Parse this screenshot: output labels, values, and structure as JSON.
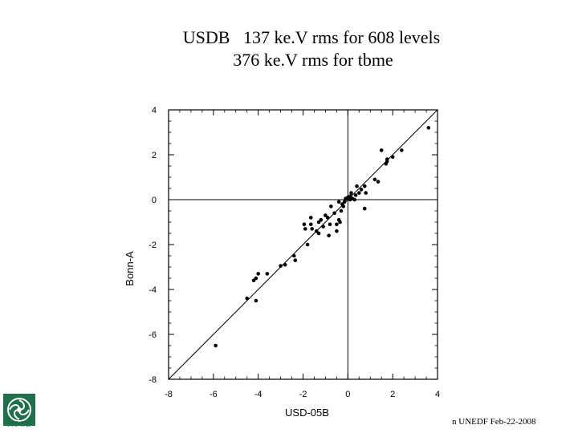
{
  "header": {
    "title_line_1": "USDB   137 ke.V rms for 608 levels",
    "title_line_2": "376 ke.V rms for tbme"
  },
  "footer": {
    "note": "n UNEDF Feb-22-2008"
  },
  "logo": {
    "text": "NSCL",
    "color": "#1f6f4a"
  },
  "chart_data": {
    "type": "scatter",
    "title": "",
    "xlabel": "USD-05B",
    "ylabel": "Bonn-A",
    "xlim": [
      -8,
      4
    ],
    "ylim": [
      -8,
      4
    ],
    "xticks": [
      -8,
      -6,
      -4,
      -2,
      0,
      2,
      4
    ],
    "yticks": [
      -8,
      -6,
      -4,
      -2,
      0,
      2,
      4
    ],
    "reference_lines": [
      "y=x",
      "x=0",
      "y=0"
    ],
    "grid": false,
    "points": [
      [
        -5.9,
        -6.5
      ],
      [
        -4.5,
        -4.4
      ],
      [
        -4.1,
        -4.5
      ],
      [
        -4.2,
        -3.6
      ],
      [
        -4.1,
        -3.5
      ],
      [
        -4.0,
        -3.3
      ],
      [
        -3.6,
        -3.3
      ],
      [
        -3.0,
        -2.95
      ],
      [
        -2.8,
        -2.9
      ],
      [
        -2.4,
        -2.5
      ],
      [
        -2.35,
        -2.7
      ],
      [
        -1.95,
        -1.1
      ],
      [
        -1.9,
        -1.3
      ],
      [
        -1.8,
        -2.0
      ],
      [
        -1.65,
        -1.1
      ],
      [
        -1.65,
        -0.8
      ],
      [
        -1.6,
        -1.3
      ],
      [
        -1.4,
        -1.4
      ],
      [
        -1.3,
        -1.0
      ],
      [
        -1.3,
        -1.5
      ],
      [
        -1.2,
        -0.9
      ],
      [
        -1.1,
        -1.2
      ],
      [
        -1.0,
        -0.7
      ],
      [
        -0.9,
        -0.8
      ],
      [
        -0.85,
        -1.6
      ],
      [
        -0.8,
        -1.1
      ],
      [
        -0.75,
        -0.3
      ],
      [
        -0.5,
        -1.1
      ],
      [
        -0.5,
        -1.4
      ],
      [
        -0.4,
        -0.1
      ],
      [
        -0.4,
        -0.9
      ],
      [
        -0.35,
        -1.0
      ],
      [
        -0.3,
        -0.5
      ],
      [
        -0.25,
        -0.2
      ],
      [
        -0.2,
        -0.3
      ],
      [
        -0.15,
        -0.1
      ],
      [
        -0.1,
        0.05
      ],
      [
        0.0,
        0.1
      ],
      [
        0.1,
        0.15
      ],
      [
        0.1,
        0.0
      ],
      [
        0.15,
        0.3
      ],
      [
        0.2,
        0.05
      ],
      [
        0.35,
        0.2
      ],
      [
        0.4,
        0.6
      ],
      [
        0.5,
        0.3
      ],
      [
        0.6,
        0.45
      ],
      [
        0.75,
        0.6
      ],
      [
        0.75,
        -0.4
      ],
      [
        0.8,
        0.3
      ],
      [
        1.2,
        0.9
      ],
      [
        1.35,
        0.8
      ],
      [
        1.5,
        2.2
      ],
      [
        1.7,
        1.6
      ],
      [
        1.75,
        1.8
      ],
      [
        1.75,
        1.7
      ],
      [
        2.0,
        1.9
      ],
      [
        2.4,
        2.2
      ],
      [
        3.6,
        3.2
      ],
      [
        0.3,
        0.0
      ],
      [
        -0.6,
        -0.6
      ]
    ]
  }
}
